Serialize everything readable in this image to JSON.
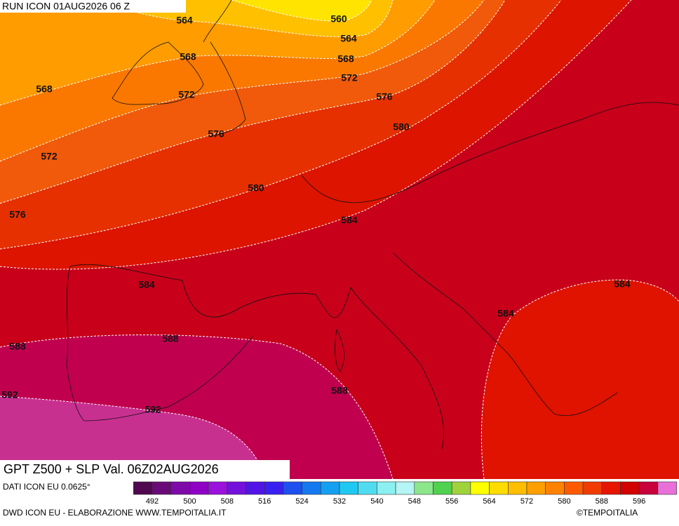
{
  "header": {
    "run": "RUN ICON 01AUG2026 06 Z"
  },
  "map": {
    "contour_labels": [
      564,
      560,
      564,
      568,
      568,
      572,
      568,
      572,
      576,
      576,
      580,
      572,
      580,
      576,
      584,
      584,
      584,
      584,
      588,
      588,
      592,
      588,
      592
    ]
  },
  "footer": {
    "title": "GPT Z500 + SLP Val. 06Z02AUG2026",
    "source": "DATI ICON EU 0.0625°",
    "credit": "DWD ICON EU - ELABORAZIONE WWW.TEMPOITALIA.IT",
    "copyright": "©TEMPOITALIA"
  },
  "colorbar": {
    "colors": [
      "#50084e",
      "#6a0a78",
      "#7e0aa8",
      "#9000c4",
      "#9a10dc",
      "#7410dc",
      "#5214e6",
      "#3a20f0",
      "#1e50f0",
      "#1478f0",
      "#14a0f0",
      "#1ec8f0",
      "#50dcf0",
      "#8cf0f0",
      "#b4f5f5",
      "#8ce68c",
      "#50d250",
      "#a0d23c",
      "#ffff00",
      "#ffdc00",
      "#ffbe00",
      "#ffa000",
      "#ff8200",
      "#ff5a00",
      "#f03c00",
      "#e61400",
      "#d20000",
      "#c8003c",
      "#e870d8"
    ],
    "labels": [
      492,
      500,
      508,
      516,
      524,
      532,
      540,
      548,
      556,
      564,
      572,
      580,
      588,
      596
    ]
  }
}
